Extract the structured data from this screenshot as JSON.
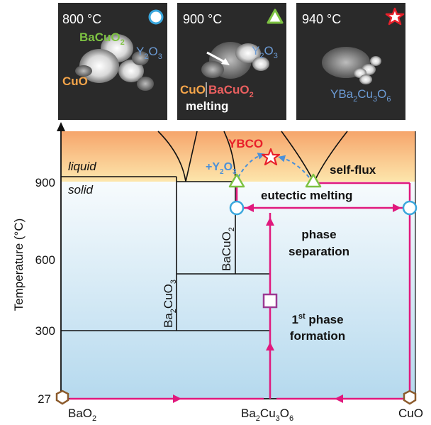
{
  "panels": [
    {
      "temperature": "800 °C",
      "labels": [
        {
          "parts": [
            "BaCuO",
            "2"
          ],
          "color": "#7dc242"
        },
        {
          "parts": [
            "Y",
            "2",
            "O",
            "3"
          ],
          "color": "#6c9bd5"
        },
        {
          "parts": [
            "CuO"
          ],
          "color": "#f5a54a"
        }
      ],
      "marker": "circle",
      "marker_color": "#3aa7dd"
    },
    {
      "temperature": "900 °C",
      "labels": [
        {
          "parts": [
            "Y",
            "2",
            "O",
            "3"
          ],
          "color": "#6c9bd5"
        },
        {
          "parts": [
            "CuO"
          ],
          "color": "#f5a54a"
        },
        {
          "parts": [
            "BaCuO",
            "2"
          ],
          "color": "#ea5f5f"
        }
      ],
      "extra_text": "melting",
      "marker": "triangle",
      "marker_color": "#7dc242"
    },
    {
      "temperature": "940 °C",
      "labels": [
        {
          "parts": [
            "YBa",
            "2",
            "Cu",
            "3",
            "O",
            "6"
          ],
          "color": "#6c9bd5"
        }
      ],
      "marker": "star",
      "marker_color": "#e8202a"
    }
  ],
  "diagram": {
    "y_axis_title": "Temperature (°C)",
    "y_ticks": [
      "900",
      "600",
      "300",
      "27"
    ],
    "x_left_label": {
      "parts": [
        "BaO",
        "2"
      ]
    },
    "x_mid_label": {
      "parts": [
        "Ba",
        "2",
        "Cu",
        "3",
        "O",
        "6"
      ]
    },
    "x_right_label": "CuO",
    "region_liquid": "liquid",
    "region_solid": "solid",
    "phase_ba2cuo3": {
      "parts": [
        "Ba",
        "2",
        "CuO",
        "3"
      ]
    },
    "phase_bacuo2": {
      "parts": [
        "BaCuO",
        "2"
      ]
    },
    "ybco_label": "YBCO",
    "y2o3_label": {
      "parts": [
        "+Y",
        "2",
        "O",
        "3"
      ]
    },
    "self_flux": "self-flux",
    "eutectic_melting": "eutectic melting",
    "phase_separation": [
      "phase",
      "separation"
    ],
    "first_phase_formation": {
      "ordinal": "1",
      "sup": "st",
      "rest": "phase",
      "line2": "formation"
    },
    "colors": {
      "magenta": "#e0197d",
      "blue_dashed": "#4a90d9",
      "liquid_top": "#f6a56b",
      "liquid_bottom": "#fde2a8",
      "solid_top": "#f3f8fc",
      "solid_bottom": "#b9dcef",
      "ybco_red": "#e8202a",
      "purple_square": "#9b3a93",
      "hexagon": "#8b5a2b"
    }
  }
}
